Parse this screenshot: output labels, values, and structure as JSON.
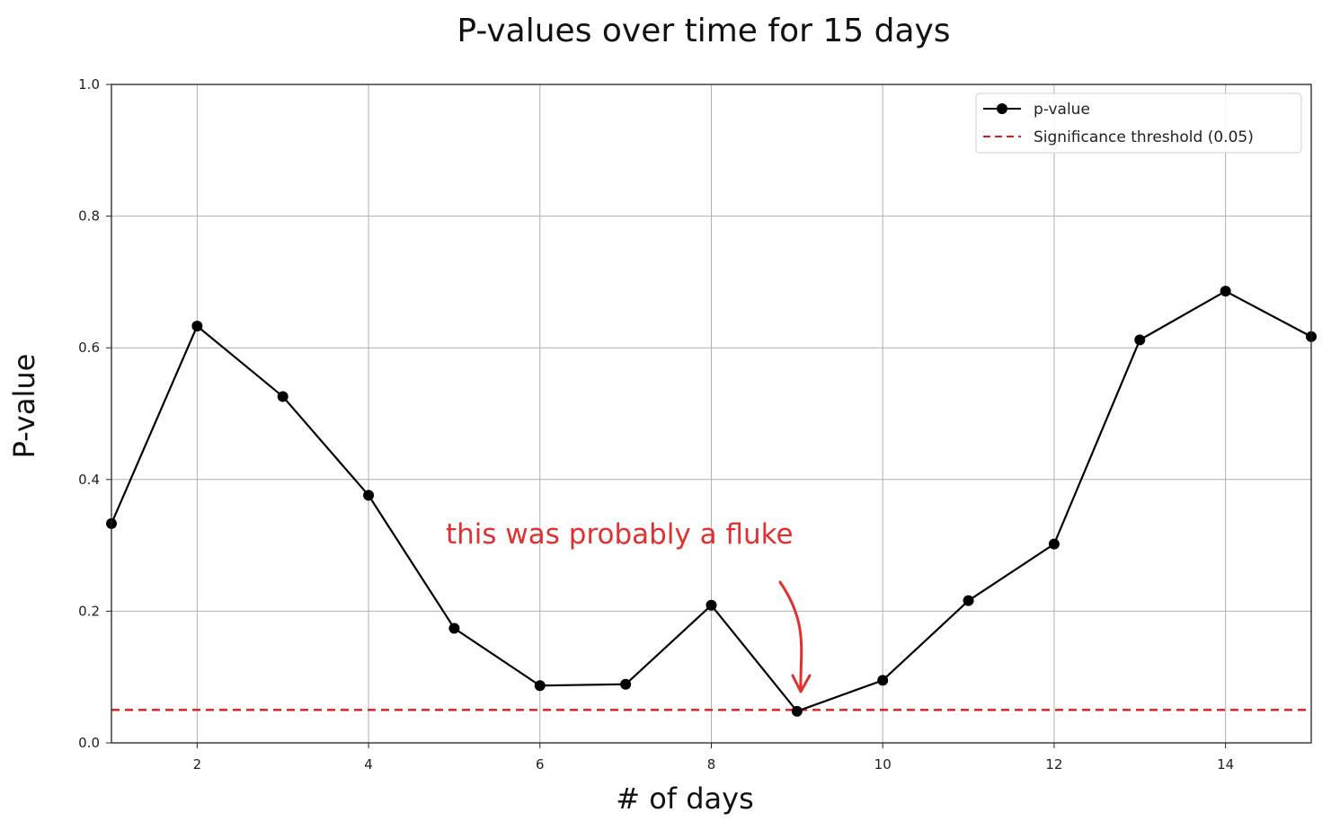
{
  "chart_data": {
    "type": "line",
    "title": "P-values over time for 15 days",
    "xlabel": "# of days",
    "ylabel": "P-value",
    "xlim": [
      1,
      15
    ],
    "ylim": [
      0,
      1.0
    ],
    "xticks": [
      2,
      4,
      6,
      8,
      10,
      12,
      14
    ],
    "yticks": [
      0.0,
      0.2,
      0.4,
      0.6,
      0.8,
      1.0
    ],
    "xtick_labels": [
      "2",
      "4",
      "6",
      "8",
      "10",
      "12",
      "14"
    ],
    "ytick_labels": [
      "0.0",
      "0.2",
      "0.4",
      "0.6",
      "0.8",
      "1.0"
    ],
    "grid": true,
    "legend_position": "top-right",
    "series": [
      {
        "name": "p-value",
        "color": "#000000",
        "marker": "circle",
        "x": [
          1,
          2,
          3,
          4,
          5,
          6,
          7,
          8,
          9,
          10,
          11,
          12,
          13,
          14,
          15
        ],
        "y": [
          0.333,
          0.633,
          0.526,
          0.376,
          0.174,
          0.087,
          0.089,
          0.209,
          0.048,
          0.095,
          0.216,
          0.302,
          0.612,
          0.686,
          0.617
        ]
      }
    ],
    "reference_lines": [
      {
        "name": "Significance threshold (0.05)",
        "y": 0.05,
        "color": "#e31a1c",
        "style": "dashed"
      }
    ],
    "annotation": {
      "text": "this was probably a fluke",
      "target_x": 9,
      "target_y": 0.048,
      "color": "#e03131"
    }
  }
}
